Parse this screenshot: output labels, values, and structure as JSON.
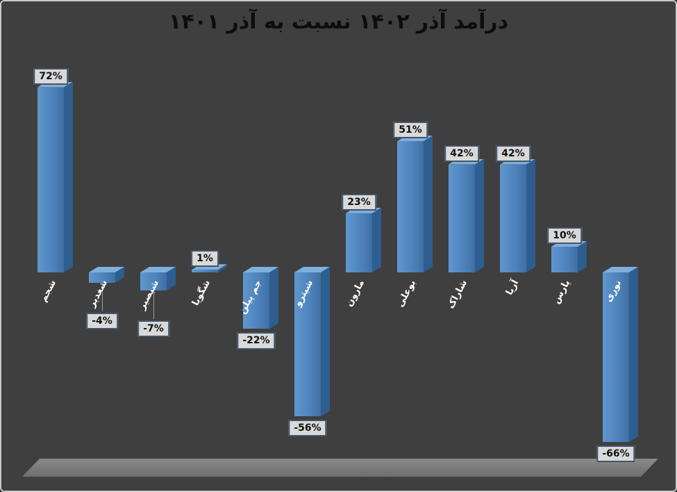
{
  "window": {
    "background": "#3f3f3f",
    "border_color": "#c9c9c9"
  },
  "chart_data": {
    "type": "bar",
    "style": "3d-column",
    "title": "درآمد آذر ۱۴۰۲ نسبت به آذر ۱۴۰۱",
    "categories": [
      "شجم",
      "شغدیر",
      "شبصیر",
      "شگویا",
      "جم پیلن",
      "شپترو",
      "مارون",
      "بوعلی",
      "شاراک",
      "آریا",
      "پارس",
      "نوری"
    ],
    "values": [
      72,
      -4,
      -7,
      1,
      -22,
      -56,
      23,
      51,
      42,
      42,
      10,
      -66
    ],
    "data_labels": [
      "72%",
      "-4%",
      "-7%",
      "1%",
      "-22%",
      "-56%",
      "23%",
      "51%",
      "42%",
      "42%",
      "10%",
      "-66%"
    ],
    "unit": "%",
    "baseline": 0,
    "ylim": [
      -80,
      80
    ],
    "axes_visible": false,
    "grid": false,
    "legend": "none",
    "colors": {
      "bar_front": "#4d82bb",
      "bar_front_light": "#6097cd",
      "bar_front_dark": "#3f6fa3",
      "bar_top": "#7fb0dd",
      "bar_side": "#2e5d8f",
      "value_label_bg": "#d9d9d9",
      "value_label_border": "#44546a",
      "value_label_text": "#111111",
      "category_text": "#ffffff",
      "title_text": "#0d0d0d",
      "floor": "#7d7d7d",
      "leader_line": "#9b9b9b"
    }
  }
}
